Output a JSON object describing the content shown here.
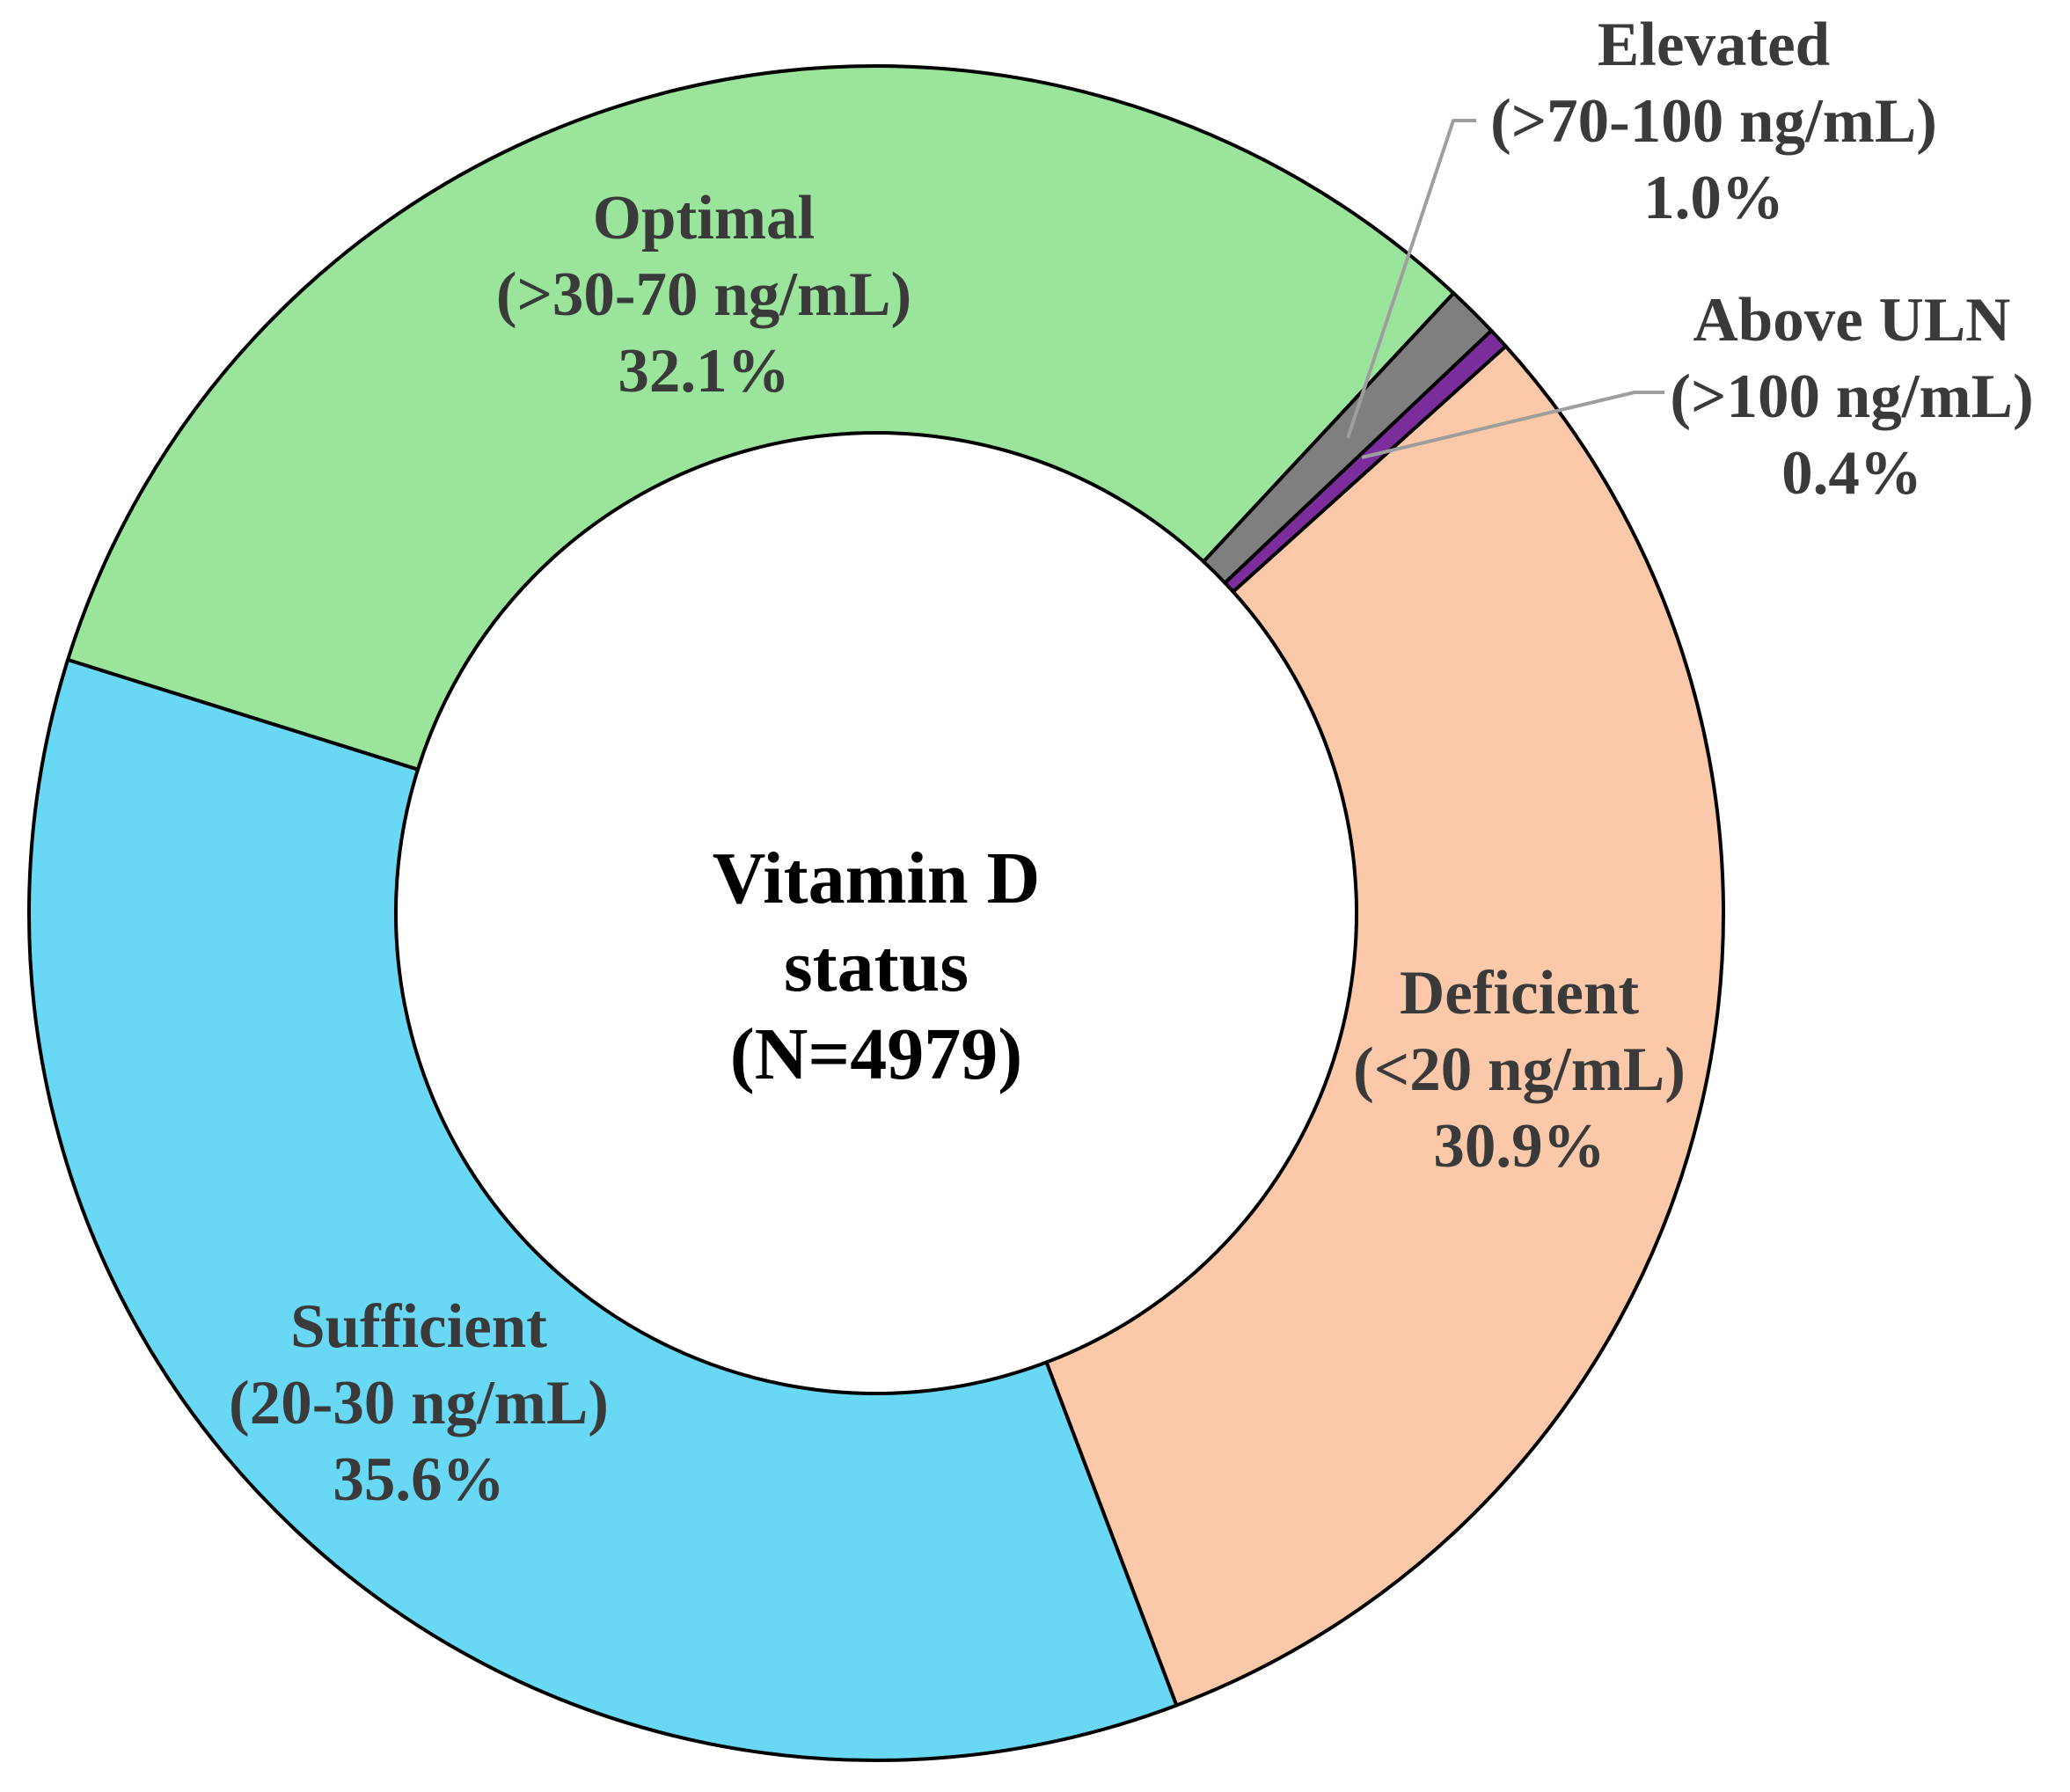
{
  "figure": {
    "background": "#ffffff",
    "wedge_border_color": "#000000",
    "leader_line_color": "#9e9e9e",
    "label_text_color": "#3a3a3a",
    "center_text_color": "#000000"
  },
  "center": {
    "lines": [
      "Vitamin D",
      "status",
      "(N=4979)"
    ],
    "n_total": 4979
  },
  "chart_data": {
    "type": "pie",
    "subtype": "donut",
    "title": "Vitamin D status (N=4979)",
    "donut_hole_ratio": 0.567,
    "start_angle_deg": 162.6,
    "direction": "clockwise",
    "legend_position": "none",
    "slices": [
      {
        "label": "Optimal",
        "range": "(>30-70 ng/mL)",
        "value_pct": 32.1,
        "pct_label": "32.1%",
        "color": "#9ae49c"
      },
      {
        "label": "Elevated",
        "range": "(>70-100 ng/mL)",
        "value_pct": 1.0,
        "pct_label": "1.0%",
        "color": "#7f7f7f"
      },
      {
        "label": "Above ULN",
        "range": "(>100 ng/mL)",
        "value_pct": 0.4,
        "pct_label": "0.4%",
        "color": "#7c2d9c"
      },
      {
        "label": "Deficient",
        "range": "(<20 ng/mL)",
        "value_pct": 30.9,
        "pct_label": "30.9%",
        "color": "#fbc9a9"
      },
      {
        "label": "Sufficient",
        "range": "(20-30 ng/mL)",
        "value_pct": 35.6,
        "pct_label": "35.6%",
        "color": "#69d8f4"
      }
    ]
  }
}
